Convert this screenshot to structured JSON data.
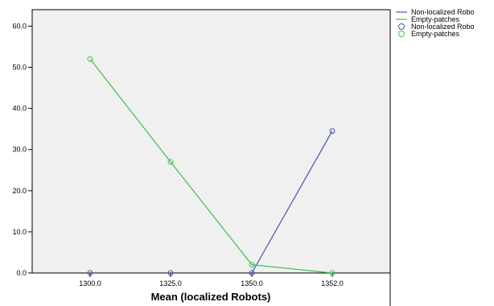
{
  "chart_data": {
    "type": "line",
    "title": "",
    "xlabel": "Mean (localized Robots)",
    "ylabel": "",
    "categories": [
      "1300.0",
      "1325.0",
      "1350.0",
      "1352.0"
    ],
    "ylim": [
      0,
      64
    ],
    "yticks": [
      0,
      10,
      20,
      30,
      40,
      50,
      60
    ],
    "ytick_labels": [
      "0.0",
      "10.0",
      "20.0",
      "30.0",
      "40.0",
      "50.0",
      "60.0"
    ],
    "grid": false,
    "plot_background": "#f0f0f0",
    "legend_position": "outside-top-right",
    "series": [
      {
        "name": "Non-localized Robo",
        "color": "#4a52b5",
        "values": [
          0,
          0,
          0,
          34.5
        ],
        "line_points": [
          2,
          3
        ]
      },
      {
        "name": "Empty-patches",
        "color": "#3fbf4f",
        "values": [
          52,
          27,
          2,
          0
        ],
        "line_points": [
          0,
          1,
          2,
          3
        ]
      }
    ],
    "legend": [
      {
        "label": "Non-localized Robo",
        "kind": "line",
        "color": "#4a52b5"
      },
      {
        "label": "Empty-patches",
        "kind": "line",
        "color": "#3fbf4f"
      },
      {
        "label": "Non-localized Robo",
        "kind": "marker",
        "color": "#4a52b5"
      },
      {
        "label": "Empty-patches",
        "kind": "marker",
        "color": "#3fbf4f"
      }
    ]
  }
}
